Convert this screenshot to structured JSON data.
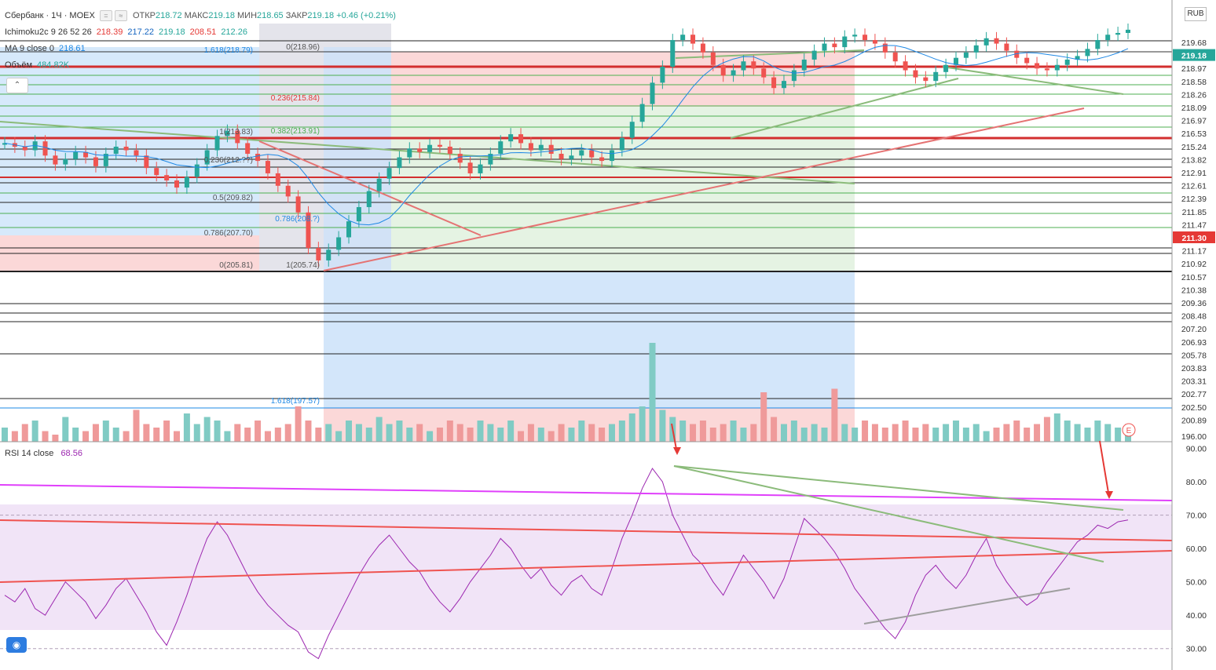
{
  "header": {
    "symbol": "Сбербанк · 1Ч · MOEX",
    "ohlc": [
      {
        "label": "ОТКР",
        "value": "218.72"
      },
      {
        "label": "МАКС",
        "value": "219.18"
      },
      {
        "label": "МИН",
        "value": "218.65"
      },
      {
        "label": "ЗАКР",
        "value": "219.18"
      }
    ],
    "change": "+0.46 (+0.21%)",
    "change_color": "#26a69a"
  },
  "indicators": [
    {
      "name": "Ichimoku2c 9 26 52 26",
      "values": [
        "218.39",
        "217.22",
        "219.18",
        "208.51",
        "212.26"
      ],
      "colors": [
        "#e53935",
        "#1565c0",
        "#26a69a",
        "#e53935",
        "#26a69a"
      ]
    },
    {
      "name": "MA 9 close 0",
      "values": [
        "218.61"
      ],
      "colors": [
        "#1e88e5"
      ]
    },
    {
      "name": "Объём",
      "values": [
        "484.82K"
      ],
      "colors": [
        "#26a69a"
      ]
    }
  ],
  "rsi_legend": {
    "name": "RSI 14 close",
    "value": "68.56",
    "color": "#9c27b0"
  },
  "currency_badge": "RUB",
  "collapse_icon": "chevron-up-icon",
  "collapse_glyph": "⌃",
  "logo_icon": "tradingview-logo-icon",
  "logo_glyph": "◉",
  "earnings_marker": "E",
  "price_axis_labels": [
    {
      "value": "219.68",
      "hl": false
    },
    {
      "value": "219.18",
      "hl": "#26a69a"
    },
    {
      "value": "218.97",
      "hl": false
    },
    {
      "value": "218.58",
      "hl": false
    },
    {
      "value": "218.26",
      "hl": false
    },
    {
      "value": "218.09",
      "hl": false
    },
    {
      "value": "216.97",
      "hl": false
    },
    {
      "value": "216.53",
      "hl": false
    },
    {
      "value": "215.24",
      "hl": false
    },
    {
      "value": "213.82",
      "hl": false
    },
    {
      "value": "212.91",
      "hl": false
    },
    {
      "value": "212.61",
      "hl": false
    },
    {
      "value": "212.39",
      "hl": false
    },
    {
      "value": "211.85",
      "hl": false
    },
    {
      "value": "211.47",
      "hl": false
    },
    {
      "value": "211.30",
      "hl": "#e53935"
    },
    {
      "value": "211.17",
      "hl": false
    },
    {
      "value": "210.92",
      "hl": false
    },
    {
      "value": "210.57",
      "hl": false
    },
    {
      "value": "210.38",
      "hl": false
    },
    {
      "value": "209.36",
      "hl": false
    },
    {
      "value": "208.48",
      "hl": false
    },
    {
      "value": "207.20",
      "hl": false
    },
    {
      "value": "206.93",
      "hl": false
    },
    {
      "value": "205.78",
      "hl": false
    },
    {
      "value": "203.83",
      "hl": false
    },
    {
      "value": "203.31",
      "hl": false
    },
    {
      "value": "202.77",
      "hl": false
    },
    {
      "value": "202.50",
      "hl": false
    },
    {
      "value": "200.89",
      "hl": false
    },
    {
      "value": "196.00",
      "hl": false
    }
  ],
  "rsi_axis_labels": [
    "90.00",
    "80.00",
    "70.00",
    "60.00",
    "50.00",
    "40.00",
    "30.00"
  ],
  "fib_labels_left": [
    {
      "text": "1(213.83)"
    },
    {
      "text": "0.236(212.??)"
    },
    {
      "text": "0.5(209.82)"
    },
    {
      "text": "0.786(207.70)"
    },
    {
      "text": "0(205.81)"
    }
  ],
  "fib_labels_mid": [
    {
      "text": "1.618(218.79)",
      "color": "#1e88e5"
    },
    {
      "text": "0(218.96)",
      "color": "#555"
    },
    {
      "text": "0.236(215.84)",
      "color": "#e53935"
    },
    {
      "text": "0.382(213.91)",
      "color": "#4caf50"
    },
    {
      "text": "0.786(208.?)",
      "color": "#1e88e5"
    },
    {
      "text": "1(205.74)",
      "color": "#555"
    },
    {
      "text": "1.618(197.57)",
      "color": "#1e88e5"
    }
  ],
  "chart_data": {
    "type": "candlestick",
    "title": "Сбербанк · 1Ч · MOEX",
    "y_range": [
      196,
      220.5
    ],
    "rsi_range": [
      25,
      92
    ],
    "rsi_levels": [
      70,
      30
    ],
    "series": [
      {
        "name": "price_close",
        "values": [
          212.8,
          212.6,
          212.4,
          212.9,
          212.1,
          211.6,
          211.9,
          212.3,
          212.0,
          211.5,
          212.2,
          212.6,
          212.4,
          212.1,
          211.4,
          211.0,
          210.7,
          210.3,
          210.9,
          211.6,
          212.4,
          213.2,
          213.5,
          212.8,
          212.2,
          211.8,
          211.1,
          210.4,
          209.8,
          208.9,
          206.9,
          206.2,
          206.8,
          207.5,
          208.4,
          209.2,
          210.1,
          210.8,
          211.4,
          212.0,
          212.5,
          212.3,
          212.7,
          212.6,
          212.2,
          211.7,
          211.1,
          211.6,
          212.2,
          212.9,
          213.3,
          212.8,
          212.4,
          212.7,
          212.2,
          211.9,
          212.1,
          212.4,
          212.0,
          211.8,
          212.4,
          213.1,
          214.0,
          215.0,
          216.2,
          217.1,
          218.6,
          218.9,
          218.4,
          217.9,
          217.2,
          216.6,
          216.9,
          217.4,
          217.0,
          216.5,
          215.9,
          216.3,
          216.9,
          217.5,
          218.0,
          218.4,
          218.2,
          218.8,
          218.9,
          218.6,
          218.4,
          217.9,
          217.4,
          216.9,
          216.5,
          216.3,
          216.8,
          217.2,
          217.6,
          217.9,
          218.3,
          218.7,
          218.4,
          218.0,
          217.6,
          217.3,
          217.0,
          216.9,
          217.2,
          217.5,
          217.7,
          218.1,
          218.6,
          218.9,
          219.0,
          219.18
        ]
      },
      {
        "name": "rsi",
        "values": [
          46,
          44,
          48,
          42,
          40,
          45,
          50,
          47,
          44,
          39,
          43,
          48,
          51,
          46,
          41,
          35,
          31,
          38,
          46,
          55,
          63,
          68,
          64,
          58,
          52,
          47,
          43,
          40,
          37,
          35,
          29,
          27,
          34,
          40,
          46,
          52,
          57,
          61,
          64,
          60,
          56,
          53,
          48,
          44,
          41,
          45,
          50,
          54,
          58,
          63,
          60,
          55,
          51,
          54,
          49,
          46,
          50,
          52,
          48,
          46,
          54,
          63,
          70,
          78,
          84,
          80,
          70,
          64,
          58,
          55,
          50,
          46,
          52,
          58,
          54,
          50,
          45,
          51,
          60,
          69,
          66,
          63,
          59,
          54,
          48,
          44,
          40,
          36,
          33,
          38,
          46,
          52,
          55,
          51,
          48,
          52,
          58,
          63,
          55,
          50,
          46,
          43,
          45,
          50,
          54,
          58,
          62,
          64,
          67,
          66,
          68,
          68.56
        ]
      },
      {
        "name": "volume",
        "values": [
          0.4,
          0.3,
          0.5,
          0.6,
          0.3,
          0.2,
          0.7,
          0.4,
          0.3,
          0.5,
          0.6,
          0.4,
          0.3,
          0.9,
          0.5,
          0.4,
          0.6,
          0.3,
          0.8,
          0.5,
          0.7,
          0.6,
          0.3,
          0.5,
          0.4,
          0.6,
          0.3,
          0.4,
          0.5,
          1.0,
          0.6,
          0.4,
          0.5,
          0.3,
          0.6,
          0.5,
          0.4,
          0.7,
          0.5,
          0.6,
          0.4,
          0.5,
          0.3,
          0.4,
          0.6,
          0.5,
          0.4,
          0.6,
          0.5,
          0.4,
          0.6,
          0.3,
          0.5,
          0.4,
          0.3,
          0.5,
          0.4,
          0.6,
          0.5,
          0.4,
          0.5,
          0.6,
          0.8,
          1.0,
          2.8,
          0.9,
          0.7,
          0.6,
          0.5,
          0.6,
          0.4,
          0.5,
          0.6,
          0.4,
          0.5,
          1.4,
          0.7,
          0.5,
          0.6,
          0.4,
          0.5,
          0.4,
          1.5,
          0.5,
          0.4,
          0.6,
          0.5,
          0.4,
          0.5,
          0.6,
          0.4,
          0.5,
          0.4,
          0.5,
          0.6,
          0.4,
          0.5,
          0.3,
          0.4,
          0.5,
          0.6,
          0.4,
          0.5,
          0.7,
          0.8,
          0.6,
          0.5,
          0.4,
          0.6,
          0.5,
          0.4,
          0.5
        ]
      }
    ]
  }
}
